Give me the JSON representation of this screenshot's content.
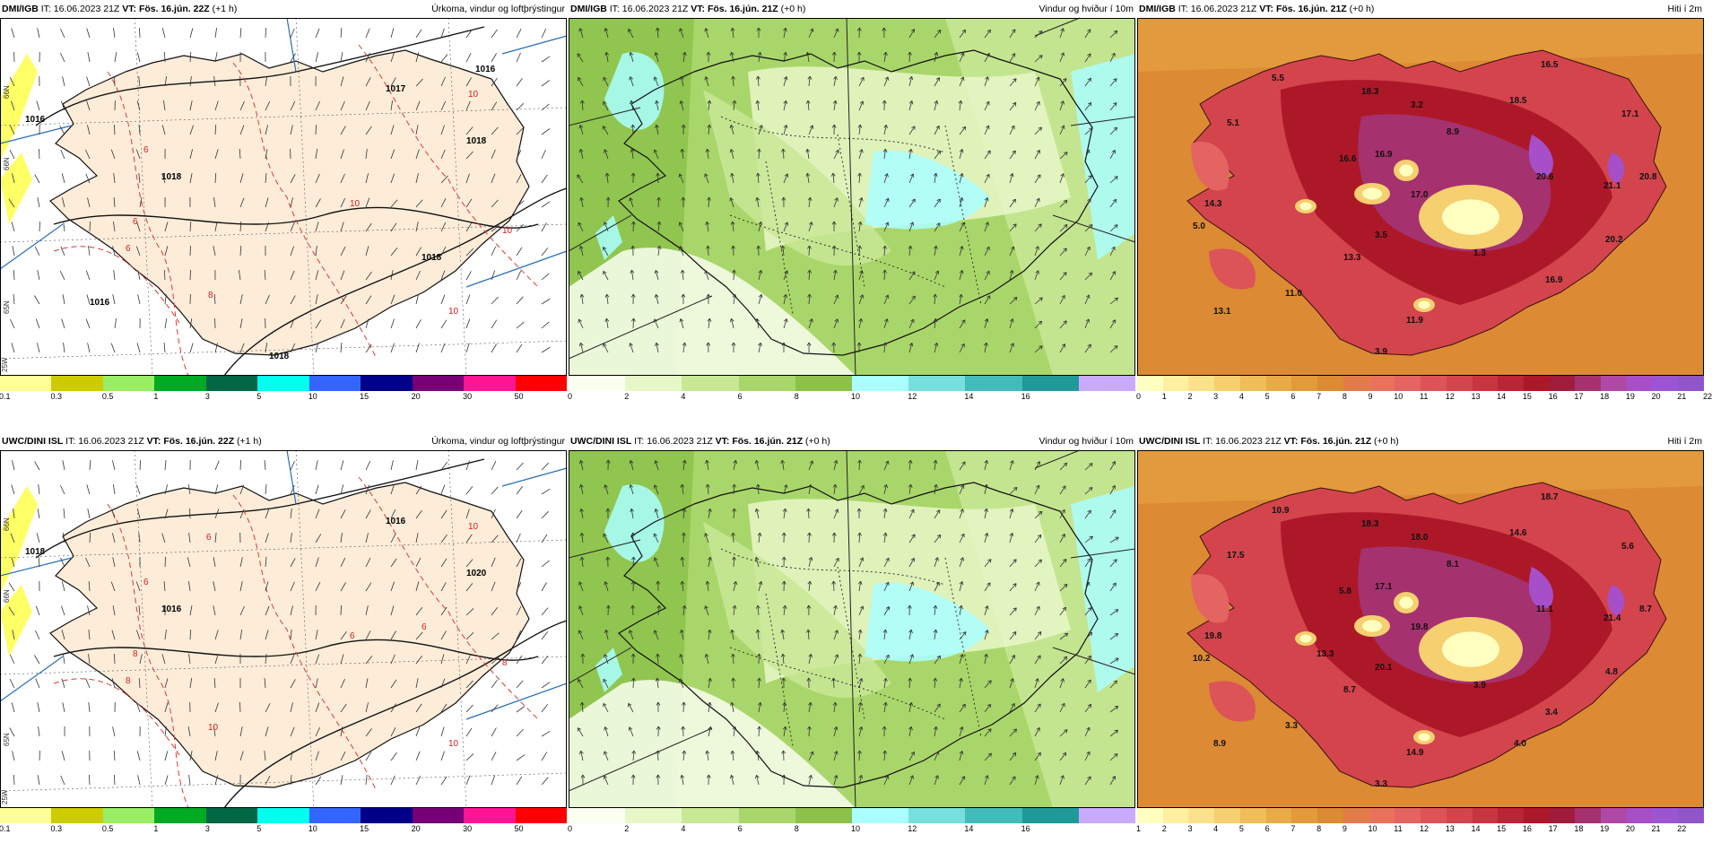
{
  "panels": [
    {
      "header": {
        "model": "DMI/IGB",
        "it_label": "IT:",
        "it": "16.06.2023 21Z",
        "vt_label": "VT:",
        "vt": "Fös. 16.jún. 22Z",
        "lead": "(+1 h)",
        "title": "Úrkoma, vindur og loftþrýstingur"
      },
      "colorbar": {
        "colors": [
          "#ffff99",
          "#cccc00",
          "#99ee66",
          "#00aa22",
          "#006644",
          "#00ffee",
          "#3366ff",
          "#000088",
          "#770077",
          "#ff1493",
          "#ff0000"
        ],
        "ticks": [
          "0.1",
          "0.3",
          "0.5",
          "1",
          "3",
          "5",
          "10",
          "15",
          "20",
          "30",
          "50"
        ]
      },
      "pressure_labels": [
        "1017",
        "1016",
        "1018",
        "1018",
        "1016",
        "1016",
        "1018",
        "1018"
      ],
      "temp_labels": [
        "6",
        "6",
        "10",
        "10",
        "8",
        "10",
        "6",
        "10"
      ],
      "lat_labels": [
        "66N",
        "66N",
        "65N",
        "25W"
      ]
    },
    {
      "header": {
        "model": "DMI/IGB",
        "it_label": "IT:",
        "it": "16.06.2023 21Z",
        "vt_label": "VT:",
        "vt": "Fös. 16.jún. 21Z",
        "lead": "(+0 h)",
        "title": "Vindur og hviður í 10m"
      },
      "colorbar": {
        "colors": [
          "#fafff0",
          "#e8f7c8",
          "#c9e896",
          "#a9d66a",
          "#8cc24a",
          "#aaffff",
          "#77e0dd",
          "#44bbbb",
          "#229999",
          "#c8aaff"
        ],
        "ticks": [
          "0",
          "2",
          "4",
          "6",
          "8",
          "10",
          "12",
          "14",
          "16"
        ]
      }
    },
    {
      "header": {
        "model": "DMI/IGB",
        "it_label": "IT:",
        "it": "16.06.2023 21Z",
        "vt_label": "VT:",
        "vt": "Fös. 16.jún. 21Z",
        "lead": "(+0 h)",
        "title": "Hiti í 2m"
      },
      "colorbar": {
        "colors": [
          "#ffffc0",
          "#fff0a0",
          "#fbe18c",
          "#f5cf70",
          "#efbd5a",
          "#e9aa48",
          "#e29a3c",
          "#dc8a34",
          "#e17c4a",
          "#e8735a",
          "#e36460",
          "#dc5458",
          "#d3444c",
          "#c83440",
          "#bb2434",
          "#ad1828",
          "#a01c3c",
          "#a5316f",
          "#b048a6",
          "#a64fc8",
          "#9b55d2",
          "#8f55c9"
        ],
        "ticks": [
          "0",
          "1",
          "2",
          "3",
          "4",
          "5",
          "6",
          "7",
          "8",
          "9",
          "10",
          "11",
          "12",
          "13",
          "14",
          "15",
          "16",
          "17",
          "18",
          "19",
          "20",
          "21",
          "22"
        ]
      },
      "temp_values": [
        "5.5",
        "18.3",
        "18.5",
        "16.5",
        "5.1",
        "3.2",
        "17.1",
        "8.9",
        "16.6",
        "16.9",
        "20.6",
        "20.8",
        "21.1",
        "17.0",
        "14.3",
        "5.0",
        "3.5",
        "13.3",
        "20.2",
        "1.3",
        "11.0",
        "16.9",
        "13.1",
        "11.9",
        "3.9"
      ]
    },
    {
      "header": {
        "model": "UWC/DINI ISL",
        "it_label": "IT:",
        "it": "16.06.2023 21Z",
        "vt_label": "VT:",
        "vt": "Fös. 16.jún. 22Z",
        "lead": "(+1 h)",
        "title": "Úrkoma, vindur og loftþrýstingur"
      },
      "colorbar": {
        "colors": [
          "#ffff99",
          "#cccc00",
          "#99ee66",
          "#00aa22",
          "#006644",
          "#00ffee",
          "#3366ff",
          "#000088",
          "#770077",
          "#ff1493",
          "#ff0000"
        ],
        "ticks": [
          "0.1",
          "0.3",
          "0.5",
          "1",
          "3",
          "5",
          "10",
          "15",
          "20",
          "30",
          "50"
        ]
      },
      "pressure_labels": [
        "1016",
        "1018",
        "1016",
        "1020"
      ],
      "temp_labels": [
        "6",
        "8",
        "10",
        "6",
        "10",
        "10",
        "8",
        "8",
        "6",
        "6"
      ],
      "lat_labels": [
        "66N",
        "66N",
        "65N",
        "25W"
      ]
    },
    {
      "header": {
        "model": "UWC/DINI ISL",
        "it_label": "IT:",
        "it": "16.06.2023 21Z",
        "vt_label": "VT:",
        "vt": "Fös. 16.jún. 21Z",
        "lead": "(+0 h)",
        "title": "Vindur og hviður í 10m"
      },
      "colorbar": {
        "colors": [
          "#fafff0",
          "#e8f7c8",
          "#c9e896",
          "#a9d66a",
          "#8cc24a",
          "#aaffff",
          "#77e0dd",
          "#44bbbb",
          "#229999",
          "#c8aaff"
        ],
        "ticks": [
          "0",
          "2",
          "4",
          "6",
          "8",
          "10",
          "12",
          "14",
          "16"
        ]
      }
    },
    {
      "header": {
        "model": "UWC/DINI ISL",
        "it_label": "IT:",
        "it": "16.06.2023 21Z",
        "vt_label": "VT:",
        "vt": "Fös. 16.jún. 21Z",
        "lead": "(+0 h)",
        "title": "Hiti í 2m"
      },
      "colorbar": {
        "colors": [
          "#ffffc0",
          "#fff0a0",
          "#fbe18c",
          "#f5cf70",
          "#efbd5a",
          "#e9aa48",
          "#e29a3c",
          "#dc8a34",
          "#e17c4a",
          "#e8735a",
          "#e36460",
          "#dc5458",
          "#d3444c",
          "#c83440",
          "#bb2434",
          "#ad1828",
          "#a01c3c",
          "#a5316f",
          "#b048a6",
          "#a64fc8",
          "#9b55d2",
          "#8f55c9"
        ],
        "ticks": [
          "1",
          "2",
          "3",
          "4",
          "5",
          "6",
          "7",
          "8",
          "9",
          "10",
          "11",
          "12",
          "13",
          "14",
          "15",
          "16",
          "17",
          "18",
          "19",
          "20",
          "21",
          "22"
        ]
      },
      "temp_values": [
        "10.9",
        "18.3",
        "14.6",
        "18.7",
        "17.5",
        "18.0",
        "5.6",
        "8.1",
        "5.8",
        "17.1",
        "11.1",
        "8.7",
        "21.4",
        "19.8",
        "19.8",
        "10.2",
        "20.1",
        "8.7",
        "4.8",
        "3.9",
        "3.3",
        "3.4",
        "8.9",
        "14.9",
        "3.3",
        "13.3",
        "4.0"
      ]
    }
  ]
}
